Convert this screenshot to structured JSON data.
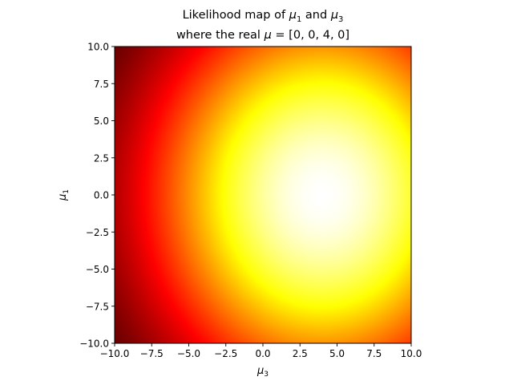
{
  "chart_data": {
    "type": "heatmap",
    "title_line1_prefix": "Likelihood map of ",
    "title_line1_var1_base": "μ",
    "title_line1_var1_sub": "1",
    "title_line1_mid": " and ",
    "title_line1_var2_base": "μ",
    "title_line1_var2_sub": "3",
    "title_line2_prefix": "where the real ",
    "title_line2_var": "μ",
    "title_line2_suffix": " = [0, 0, 4, 0]",
    "xlabel_base": "μ",
    "xlabel_sub": "3",
    "ylabel_base": "μ",
    "ylabel_sub": "1",
    "xlim": [
      -10,
      10
    ],
    "ylim": [
      -10,
      10
    ],
    "x_ticks": [
      "−10.0",
      "−7.5",
      "−5.0",
      "−2.5",
      "0.0",
      "2.5",
      "5.0",
      "7.5",
      "10.0"
    ],
    "y_ticks": [
      "−10.0",
      "−7.5",
      "−5.0",
      "−2.5",
      "0.0",
      "2.5",
      "5.0",
      "7.5",
      "10.0"
    ],
    "x_tick_values": [
      -10,
      -7.5,
      -5,
      -2.5,
      0,
      2.5,
      5,
      7.5,
      10
    ],
    "y_tick_values": [
      -10,
      -7.5,
      -5,
      -2.5,
      0,
      2.5,
      5,
      7.5,
      10
    ],
    "peak": {
      "x": 4,
      "y": 0
    },
    "colormap": "hot",
    "grid": false
  }
}
